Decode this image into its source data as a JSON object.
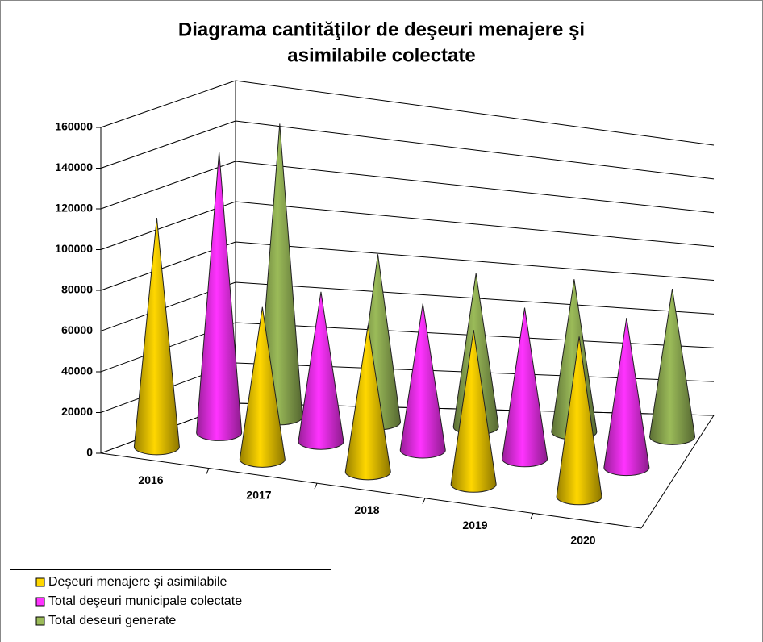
{
  "chart_data": {
    "type": "cone3d",
    "title": [
      "Diagrama cantităţilor de deşeuri menajere şi",
      "asimilabile colectate"
    ],
    "categories": [
      "2016",
      "2017",
      "2018",
      "2019",
      "2020"
    ],
    "series": [
      {
        "name": "Deşeuri menajere şi asimilabile",
        "color": "#ffd700",
        "values": [
          113000,
          76000,
          74000,
          79000,
          83000
        ]
      },
      {
        "name": "Total deşeuri municipale colectate",
        "color": "#ff33ff",
        "values": [
          140000,
          76000,
          76000,
          80000,
          81000
        ]
      },
      {
        "name": "Total deseuri generate",
        "color": "#9bbb59",
        "values": [
          148000,
          87000,
          82000,
          84000,
          84000
        ]
      }
    ],
    "ylim": [
      0,
      160000
    ],
    "yticks": [
      0,
      20000,
      40000,
      60000,
      80000,
      100000,
      120000,
      140000,
      160000
    ],
    "grid": true
  }
}
